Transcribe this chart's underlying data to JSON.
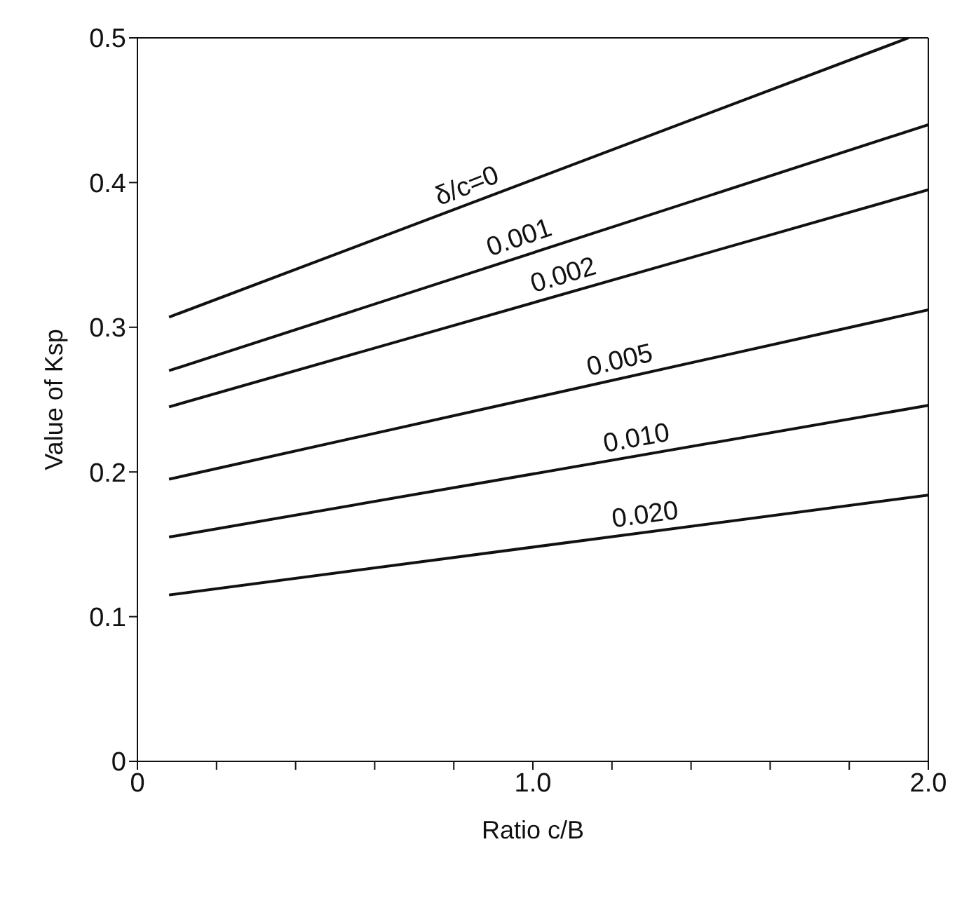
{
  "chart_data": {
    "type": "line",
    "xlabel": "Ratio c/B",
    "ylabel": "Value of Ksp",
    "series": [
      {
        "color": "#111111",
        "x": [
          0.08,
          1.95
        ],
        "values": [
          0.307,
          0.5
        ]
      },
      {
        "color": "#111111",
        "x": [
          0.08,
          2.0
        ],
        "values": [
          0.27,
          0.44
        ]
      },
      {
        "color": "#111111",
        "x": [
          0.08,
          2.0
        ],
        "values": [
          0.245,
          0.395
        ]
      },
      {
        "color": "#111111",
        "x": [
          0.08,
          2.0
        ],
        "values": [
          0.195,
          0.312
        ]
      },
      {
        "color": "#111111",
        "x": [
          0.08,
          2.0
        ],
        "values": [
          0.155,
          0.246
        ]
      },
      {
        "color": "#111111",
        "x": [
          0.08,
          2.0
        ],
        "values": [
          0.115,
          0.184
        ]
      }
    ],
    "annotations": [
      {
        "text": "δ/c=0",
        "x": 0.85,
        "y": 0.386
      },
      {
        "text": "0.001",
        "x": 0.98,
        "y": 0.35
      },
      {
        "text": "0.002",
        "x": 1.09,
        "y": 0.324
      },
      {
        "text": "0.005",
        "x": 1.23,
        "y": 0.265
      },
      {
        "text": "0.010",
        "x": 1.27,
        "y": 0.211
      },
      {
        "text": "0.020",
        "x": 1.29,
        "y": 0.158
      }
    ],
    "xlim": [
      0,
      2
    ],
    "ylim": [
      0,
      0.5
    ],
    "xticks": [
      0,
      {
        "value": 0.2,
        "label": null
      },
      {
        "value": 0.4,
        "label": null
      },
      {
        "value": 0.6,
        "label": null
      },
      {
        "value": 0.8,
        "label": null
      },
      {
        "value": 1,
        "label": "1.0"
      },
      {
        "value": 1.2,
        "label": null
      },
      {
        "value": 1.4,
        "label": null
      },
      {
        "value": 1.6,
        "label": null
      },
      {
        "value": 1.8,
        "label": null
      },
      {
        "value": 2,
        "label": "2.0"
      }
    ],
    "yticks": [
      0,
      0.1,
      0.2,
      0.3,
      0.4,
      0.5
    ],
    "grid": false,
    "legend": false,
    "marker": "none",
    "line_style": "solid"
  }
}
